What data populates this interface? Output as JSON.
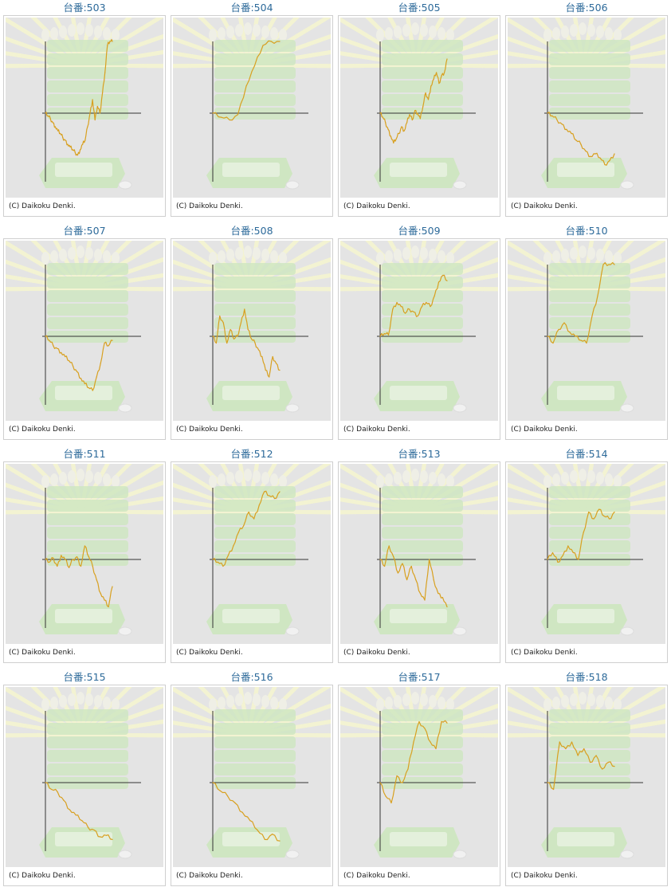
{
  "title_prefix": "台番:",
  "copyright": "(C) Daikoku Denki.",
  "colors": {
    "title": "#2d6a9a",
    "line": "#d8a020",
    "axis": "#333333",
    "panel_bg": "#e4e4e4",
    "panel_border": "#cfcfcf",
    "watermark_green": "#cfe6c2",
    "watermark_rays": "#f3f3d2"
  },
  "chart_data": [
    {
      "type": "line",
      "title": "台番:503",
      "y": [
        0,
        -4,
        -8,
        -14,
        -20,
        -26,
        -30,
        -36,
        -40,
        -46,
        -50,
        -54,
        -58,
        -62,
        -54,
        -46,
        -40,
        -20,
        0,
        20,
        -10,
        10,
        0,
        30,
        60,
        100,
        140,
        170
      ]
    },
    {
      "type": "line",
      "title": "台番:504",
      "y": [
        0,
        -6,
        -10,
        -2,
        40,
        70,
        100,
        130,
        170
      ]
    },
    {
      "type": "line",
      "title": "台番:505",
      "y": [
        0,
        -6,
        -14,
        -24,
        -34,
        -44,
        -38,
        -30,
        -20,
        -26,
        -14,
        -2,
        -10,
        4,
        0,
        -8,
        10,
        30,
        20,
        40,
        50,
        60,
        44,
        56,
        60,
        80
      ]
    },
    {
      "type": "line",
      "title": "台番:506",
      "y": [
        0,
        -4,
        -10,
        -16,
        -24,
        -30,
        -40,
        -46,
        -56,
        -64,
        -60,
        -66,
        -76,
        -70,
        -60
      ]
    },
    {
      "type": "line",
      "title": "台番:507",
      "y": [
        0,
        -6,
        -14,
        -18,
        -24,
        -30,
        -36,
        -44,
        -52,
        -62,
        -70,
        -76,
        -80,
        -60,
        -40,
        -10,
        -14,
        -6
      ]
    },
    {
      "type": "line",
      "title": "台番:508",
      "y": [
        0,
        -10,
        30,
        20,
        -10,
        10,
        -4,
        0,
        20,
        40,
        10,
        -4,
        -10,
        -20,
        -30,
        -50,
        -60,
        -30,
        -40,
        -50
      ]
    },
    {
      "type": "line",
      "title": "台番:509",
      "y": [
        0,
        4,
        2,
        40,
        50,
        44,
        34,
        40,
        36,
        30,
        44,
        50,
        44,
        60,
        80,
        90,
        82
      ]
    },
    {
      "type": "line",
      "title": "台番:510",
      "y": [
        0,
        -10,
        10,
        20,
        6,
        0,
        -6,
        -10,
        30,
        60,
        110,
        140,
        170
      ]
    },
    {
      "type": "line",
      "title": "台番:511",
      "y": [
        0,
        -4,
        2,
        -10,
        6,
        0,
        -12,
        0,
        4,
        -10,
        20,
        4,
        -10,
        -30,
        -50,
        -60,
        -70,
        -40
      ]
    },
    {
      "type": "line",
      "title": "台番:512",
      "y": [
        0,
        -4,
        -10,
        6,
        20,
        40,
        50,
        70,
        60,
        80,
        100,
        94,
        90,
        100
      ]
    },
    {
      "type": "line",
      "title": "台番:513",
      "y": [
        0,
        -10,
        20,
        4,
        -20,
        -6,
        -30,
        -10,
        -30,
        -50,
        -60,
        0,
        -30,
        -50,
        -56,
        -70
      ]
    },
    {
      "type": "line",
      "title": "台番:514",
      "y": [
        0,
        10,
        -4,
        6,
        20,
        10,
        0,
        40,
        70,
        60,
        74,
        64,
        60,
        70
      ]
    },
    {
      "type": "line",
      "title": "台番:515",
      "y": [
        0,
        -10,
        -14,
        -26,
        -40,
        -48,
        -56,
        -66,
        -70,
        -80,
        -78,
        -84
      ]
    },
    {
      "type": "line",
      "title": "台番:516",
      "y": [
        0,
        -12,
        -20,
        -30,
        -44,
        -56,
        -70,
        -84,
        -76,
        -86
      ]
    },
    {
      "type": "line",
      "title": "台番:517",
      "y": [
        0,
        -20,
        -30,
        10,
        0,
        20,
        60,
        90,
        80,
        60,
        50,
        90,
        88
      ]
    },
    {
      "type": "line",
      "title": "台番:518",
      "y": [
        0,
        -10,
        60,
        50,
        60,
        40,
        50,
        30,
        40,
        20,
        30,
        24
      ]
    }
  ]
}
